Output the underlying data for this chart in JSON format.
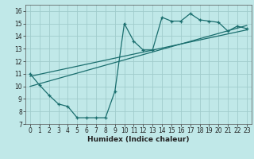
{
  "xlabel": "Humidex (Indice chaleur)",
  "ylabel": "",
  "bg_color": "#c0e8e8",
  "grid_color": "#a0cccc",
  "line_color": "#1a6e6e",
  "xlim": [
    -0.5,
    23.5
  ],
  "ylim": [
    7,
    16.5
  ],
  "xticks": [
    0,
    1,
    2,
    3,
    4,
    5,
    6,
    7,
    8,
    9,
    10,
    11,
    12,
    13,
    14,
    15,
    16,
    17,
    18,
    19,
    20,
    21,
    22,
    23
  ],
  "yticks": [
    7,
    8,
    9,
    10,
    11,
    12,
    13,
    14,
    15,
    16
  ],
  "main_line_x": [
    0,
    1,
    2,
    3,
    4,
    5,
    6,
    7,
    8,
    9,
    10,
    11,
    12,
    13,
    14,
    15,
    16,
    17,
    18,
    19,
    20,
    21,
    22,
    23
  ],
  "main_line_y": [
    11.0,
    10.1,
    9.3,
    8.6,
    8.4,
    7.5,
    7.5,
    7.5,
    7.5,
    9.6,
    15.0,
    13.6,
    12.9,
    12.9,
    15.5,
    15.2,
    15.2,
    15.8,
    15.3,
    15.2,
    15.1,
    14.4,
    14.8,
    14.6
  ],
  "reg_line1_x": [
    0,
    23
  ],
  "reg_line1_y": [
    10.8,
    14.5
  ],
  "reg_line2_x": [
    0,
    23
  ],
  "reg_line2_y": [
    10.0,
    14.85
  ],
  "font_size_tick": 5.5,
  "font_size_label": 6.5
}
